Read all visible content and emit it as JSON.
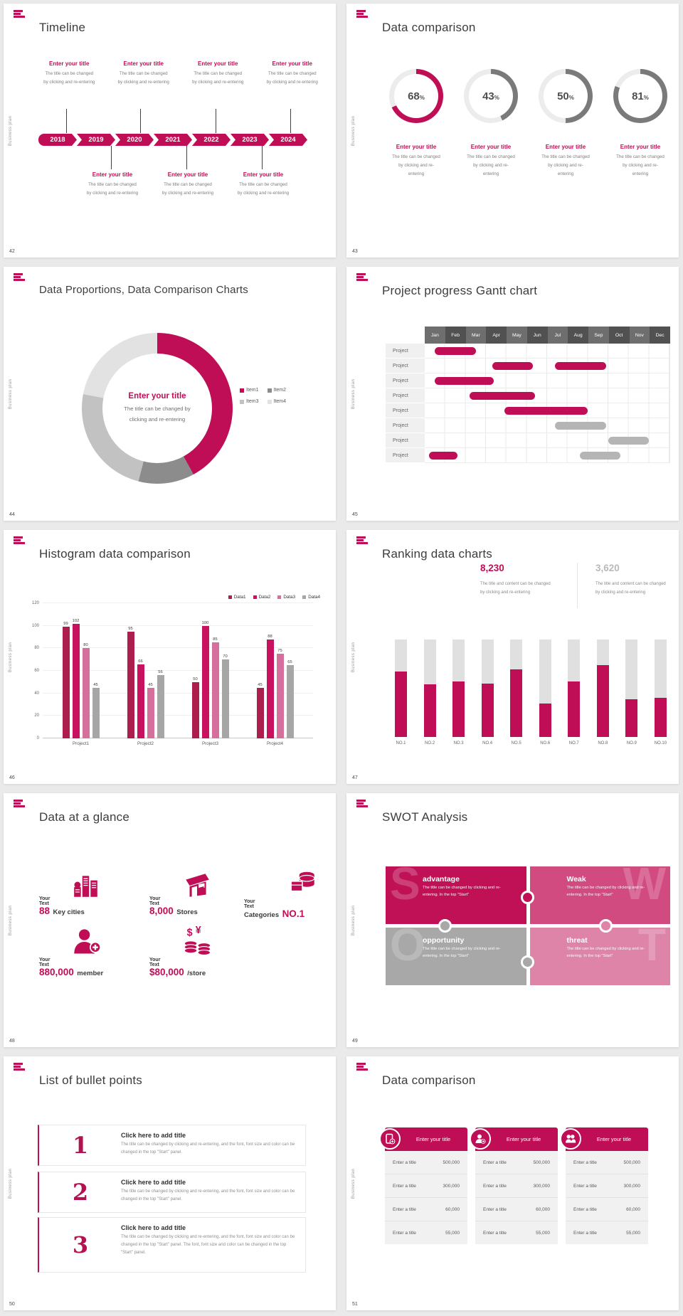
{
  "shared": {
    "vertical_label": "Business plan"
  },
  "colors": {
    "accent": "#c00e56",
    "accent_dark": "#a3104a",
    "data1": "#ab1e4d",
    "data2": "#c8115f",
    "data3": "#d56f9b",
    "data4": "#a6a6a6",
    "bar_gray": "#b5b5b5",
    "ring_gray": "#7a7a7a",
    "ring_track": "#ececec",
    "pie2": "#8c8c8c",
    "pie3": "#c2c2c2",
    "pie4": "#e2e2e2",
    "swot_s": "#c01157",
    "swot_w": "#d14a80",
    "swot_o": "#a8a8a8",
    "swot_t": "#de84a9",
    "gantt_head_a": "#6e6e6e",
    "gantt_head_b": "#515151",
    "big_gray": "#b9b9b9",
    "text_dark": "#3d3d3d",
    "text_mid": "#595959",
    "text_gray": "#7f7f7f"
  },
  "slides": {
    "s42": {
      "number": "42",
      "title": "Timeline",
      "years": [
        "2018",
        "2019",
        "2020",
        "2021",
        "2022",
        "2023",
        "2024"
      ],
      "top_items": [
        {
          "title": "Enter your title",
          "line1": "The title can be changed",
          "line2": "by clicking and re-entering"
        },
        {
          "title": "Enter your title",
          "line1": "The title can be changed",
          "line2": "by clicking and re-entering"
        },
        {
          "title": "Enter your title",
          "line1": "The title can be changed",
          "line2": "by clicking and re-entering"
        },
        {
          "title": "Enter your title",
          "line1": "The title can be changed",
          "line2": "by clicking and re-entering"
        }
      ],
      "bottom_items": [
        {
          "title": "Enter your title",
          "line1": "The title can be changed",
          "line2": "by clicking and re-entering"
        },
        {
          "title": "Enter your title",
          "line1": "The title can be changed",
          "line2": "by clicking and re-entering"
        },
        {
          "title": "Enter your title",
          "line1": "The title can be changed",
          "line2": "by clicking and re-entering"
        }
      ]
    },
    "s43": {
      "number": "43",
      "title": "Data comparison",
      "labels": [
        {
          "title": "Enter your title",
          "line1": "The title can be changed",
          "line2": "by clicking and re-entering"
        },
        {
          "title": "Enter your title",
          "line1": "The title can be changed",
          "line2": "by clicking and re-entering"
        },
        {
          "title": "Enter your title",
          "line1": "The title can be changed",
          "line2": "by clicking and re-entering"
        },
        {
          "title": "Enter your title",
          "line1": "The title can be changed",
          "line2": "by clicking and re-entering"
        }
      ]
    },
    "s44": {
      "number": "44",
      "title": "Data Proportions, Data Comparison Charts",
      "center_title": "Enter your title",
      "center_line1": "The title can be changed by",
      "center_line2": "clicking and re-entering"
    },
    "s45": {
      "number": "45",
      "title": "Project progress Gantt chart"
    },
    "s46": {
      "number": "46",
      "title": "Histogram data comparison"
    },
    "s47": {
      "number": "47",
      "title": "Ranking data charts",
      "stat1": "8,230",
      "stat2": "3,620",
      "cap_line1": "The title and content can be changed",
      "cap_line2": "by clicking and re-entering"
    },
    "s48": {
      "number": "48",
      "title": "Data at a glance",
      "items": [
        {
          "label": "Your Text",
          "value": "88",
          "unit": "Key cities",
          "icon": "city-icon"
        },
        {
          "label": "Your Text",
          "value": "8,000",
          "unit": "Stores",
          "icon": "store-icon"
        },
        {
          "label": "Your Text",
          "unit_first": true,
          "unit": "Categories",
          "value": "NO.1",
          "icon": "categories-icon"
        },
        {
          "label": "Your Text",
          "value": "880,000",
          "unit": "member",
          "icon": "member-icon"
        },
        {
          "label": "Your Text",
          "value": "$80,000",
          "unit": "/store",
          "icon": "coins-icon"
        }
      ]
    },
    "s49": {
      "number": "49",
      "title": "SWOT Analysis",
      "quads": [
        {
          "letter": "S",
          "title": "advantage",
          "body": "The title can be changed by clicking and re-entering. In the top \"Start\"",
          "color": "swot_s"
        },
        {
          "letter": "W",
          "title": "Weak",
          "body": "The title can be changed by clicking and re-entering. In the top \"Start\"",
          "color": "swot_w"
        },
        {
          "letter": "O",
          "title": "opportunity",
          "body": "The title can be changed by clicking and re-entering. In the top \"Start\"",
          "color": "swot_o"
        },
        {
          "letter": "T",
          "title": "threat",
          "body": "The title can be changed by clicking and re-entering. In the top \"Start\"",
          "color": "swot_t"
        }
      ]
    },
    "s50": {
      "number": "50",
      "title": "List of bullet points",
      "items": [
        {
          "num": "1",
          "title": "Click here to add title",
          "body": "The title can be changed by clicking and re-entering, and the font, font size and color can be changed in the top \"Start\" panel."
        },
        {
          "num": "2",
          "title": "Click here to add title",
          "body": "The title can be changed by clicking and re-entering, and the font, font size and color can be changed in the top \"Start\" panel."
        },
        {
          "num": "3",
          "title": "Click here to add title",
          "body": "The title can be changed by clicking and re-entering, and the font, font size and color can be changed in the top \"Start\" panel. The font, font size and color can be changed in the top \"Start\" panel."
        }
      ]
    },
    "s51": {
      "number": "51",
      "title": "Data comparison",
      "cards": [
        {
          "title": "Enter your title",
          "icon": "device-user-icon",
          "rows": [
            {
              "label": "Enter a title",
              "value": "500,000"
            },
            {
              "label": "Enter a title",
              "value": "300,000"
            },
            {
              "label": "Enter a title",
              "value": "60,000"
            },
            {
              "label": "Enter a title",
              "value": "55,000"
            }
          ]
        },
        {
          "title": "Enter your title",
          "icon": "person-add-icon",
          "rows": [
            {
              "label": "Enter a title",
              "value": "500,000"
            },
            {
              "label": "Enter a title",
              "value": "300,000"
            },
            {
              "label": "Enter a title",
              "value": "60,000"
            },
            {
              "label": "Enter a title",
              "value": "55,000"
            }
          ]
        },
        {
          "title": "Enter your title",
          "icon": "people-icon",
          "rows": [
            {
              "label": "Enter a title",
              "value": "500,000"
            },
            {
              "label": "Enter a title",
              "value": "300,000"
            },
            {
              "label": "Enter a title",
              "value": "60,000"
            },
            {
              "label": "Enter a title",
              "value": "55,000"
            }
          ]
        }
      ]
    }
  },
  "chart_data": [
    {
      "type": "donut",
      "slide": "43",
      "title": "Data comparison",
      "unit": "%",
      "values": [
        68,
        43,
        50,
        81
      ],
      "accent_index": 0
    },
    {
      "type": "pie",
      "slide": "44",
      "title": "Data Proportions, Data Comparison Charts",
      "legend": [
        "Item1",
        "Item2",
        "Item3",
        "Item4"
      ],
      "values": [
        42,
        12,
        24,
        22
      ]
    },
    {
      "type": "gantt",
      "slide": "45",
      "title": "Project progress Gantt chart",
      "months": [
        "Jan",
        "Feb",
        "Mar",
        "Apr",
        "May",
        "Jun",
        "Jul",
        "Aug",
        "Sep",
        "Oct",
        "Nov",
        "Dec"
      ],
      "row_label": "Project",
      "rows": [
        {
          "bars": [
            {
              "start": 0.5,
              "len": 2.0,
              "color": "red"
            }
          ]
        },
        {
          "bars": [
            {
              "start": 3.3,
              "len": 2.0,
              "color": "red"
            },
            {
              "start": 6.4,
              "len": 2.5,
              "color": "red"
            }
          ]
        },
        {
          "bars": [
            {
              "start": 0.5,
              "len": 2.9,
              "color": "red"
            }
          ]
        },
        {
          "bars": [
            {
              "start": 2.2,
              "len": 3.2,
              "color": "red"
            }
          ]
        },
        {
          "bars": [
            {
              "start": 3.9,
              "len": 4.1,
              "color": "red"
            }
          ]
        },
        {
          "bars": [
            {
              "start": 6.4,
              "len": 2.5,
              "color": "gray"
            }
          ]
        },
        {
          "bars": [
            {
              "start": 9.0,
              "len": 2.0,
              "color": "gray"
            }
          ]
        },
        {
          "bars": [
            {
              "start": 0.2,
              "len": 1.4,
              "color": "red"
            },
            {
              "start": 7.6,
              "len": 2.0,
              "color": "gray"
            }
          ]
        }
      ]
    },
    {
      "type": "bar",
      "slide": "46",
      "title": "Histogram data comparison",
      "categories": [
        "Project1",
        "Project2",
        "Project3",
        "Project4"
      ],
      "yticks": [
        0,
        20,
        40,
        60,
        80,
        100,
        120
      ],
      "ylim": [
        0,
        120
      ],
      "series": [
        {
          "name": "Data1",
          "values": [
            99,
            95,
            50,
            45
          ]
        },
        {
          "name": "Data2",
          "values": [
            102,
            66,
            100,
            88
          ]
        },
        {
          "name": "Data3",
          "values": [
            80,
            45,
            85,
            75
          ]
        },
        {
          "name": "Data4",
          "values": [
            45,
            56,
            70,
            65
          ]
        }
      ]
    },
    {
      "type": "bar",
      "slide": "47",
      "title": "Ranking data charts",
      "categories": [
        "NO.1",
        "NO.2",
        "NO.3",
        "NO.4",
        "NO.5",
        "NO.6",
        "NO.7",
        "NO.8",
        "NO.9",
        "NO.10"
      ],
      "values_pct": [
        67,
        54,
        57,
        55,
        69,
        34,
        57,
        74,
        39,
        40
      ],
      "max_pct": 100
    }
  ]
}
